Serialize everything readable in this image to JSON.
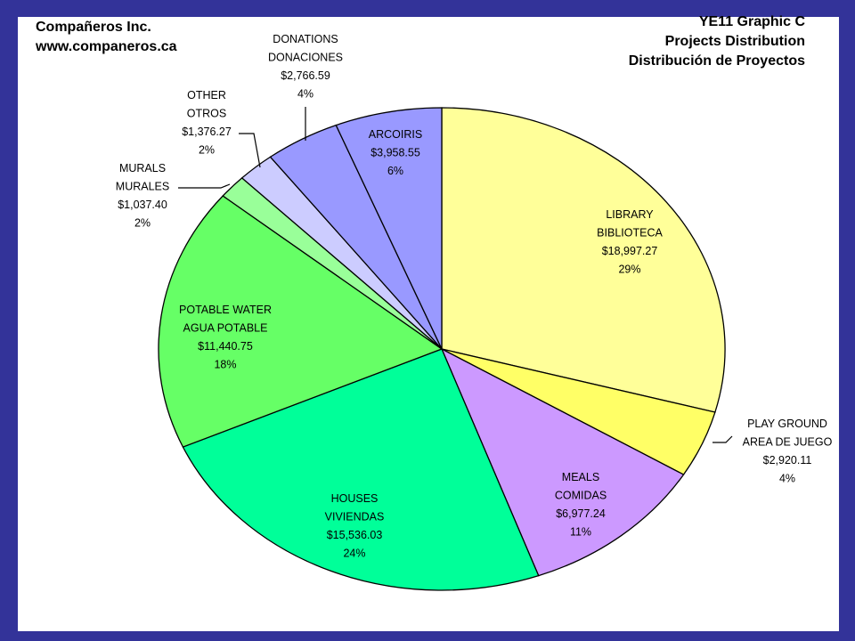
{
  "header": {
    "company_name": "Compañeros Inc.",
    "company_url": "www.companeros.ca",
    "graphic_id": "YE11 Graphic C",
    "title_en": "Projects Distribution",
    "title_es": "Distribución de Proyectos"
  },
  "chart_data": {
    "type": "pie",
    "title": "Projects Distribution",
    "subtitle": "Distribución de Proyectos",
    "legend": "none",
    "currency": "$",
    "slices": [
      {
        "label_en": "LIBRARY",
        "label_es": "BIBLIOTECA",
        "value": 18997.27,
        "value_text": "$18,997.27",
        "percent_text": "29%",
        "color": "#FFFF99"
      },
      {
        "label_en": "PLAY GROUND",
        "label_es": "AREA DE JUEGO",
        "value": 2920.11,
        "value_text": "$2,920.11",
        "percent_text": "4%",
        "color": "#FFFF66"
      },
      {
        "label_en": "MEALS",
        "label_es": "COMIDAS",
        "value": 6977.24,
        "value_text": "$6,977.24",
        "percent_text": "11%",
        "color": "#CC99FF"
      },
      {
        "label_en": "HOUSES",
        "label_es": "VIVIENDAS",
        "value": 15536.03,
        "value_text": "$15,536.03",
        "percent_text": "24%",
        "color": "#00FF99"
      },
      {
        "label_en": "POTABLE WATER",
        "label_es": "AGUA POTABLE",
        "value": 11440.75,
        "value_text": "$11,440.75",
        "percent_text": "18%",
        "color": "#66FF66"
      },
      {
        "label_en": "MURALS",
        "label_es": "MURALES",
        "value": 1037.4,
        "value_text": "$1,037.40",
        "percent_text": "2%",
        "color": "#99FF99"
      },
      {
        "label_en": "OTHER",
        "label_es": "OTROS",
        "value": 1376.27,
        "value_text": "$1,376.27",
        "percent_text": "2%",
        "color": "#CCCCFF"
      },
      {
        "label_en": "DONATIONS",
        "label_es": "DONACIONES",
        "value": 2766.59,
        "value_text": "$2,766.59",
        "percent_text": "4%",
        "color": "#9999FF"
      },
      {
        "label_en": "ARCOIRIS",
        "label_es": "",
        "value": 3958.55,
        "value_text": "$3,958.55",
        "percent_text": "6%",
        "color": "#9999FF"
      }
    ]
  }
}
